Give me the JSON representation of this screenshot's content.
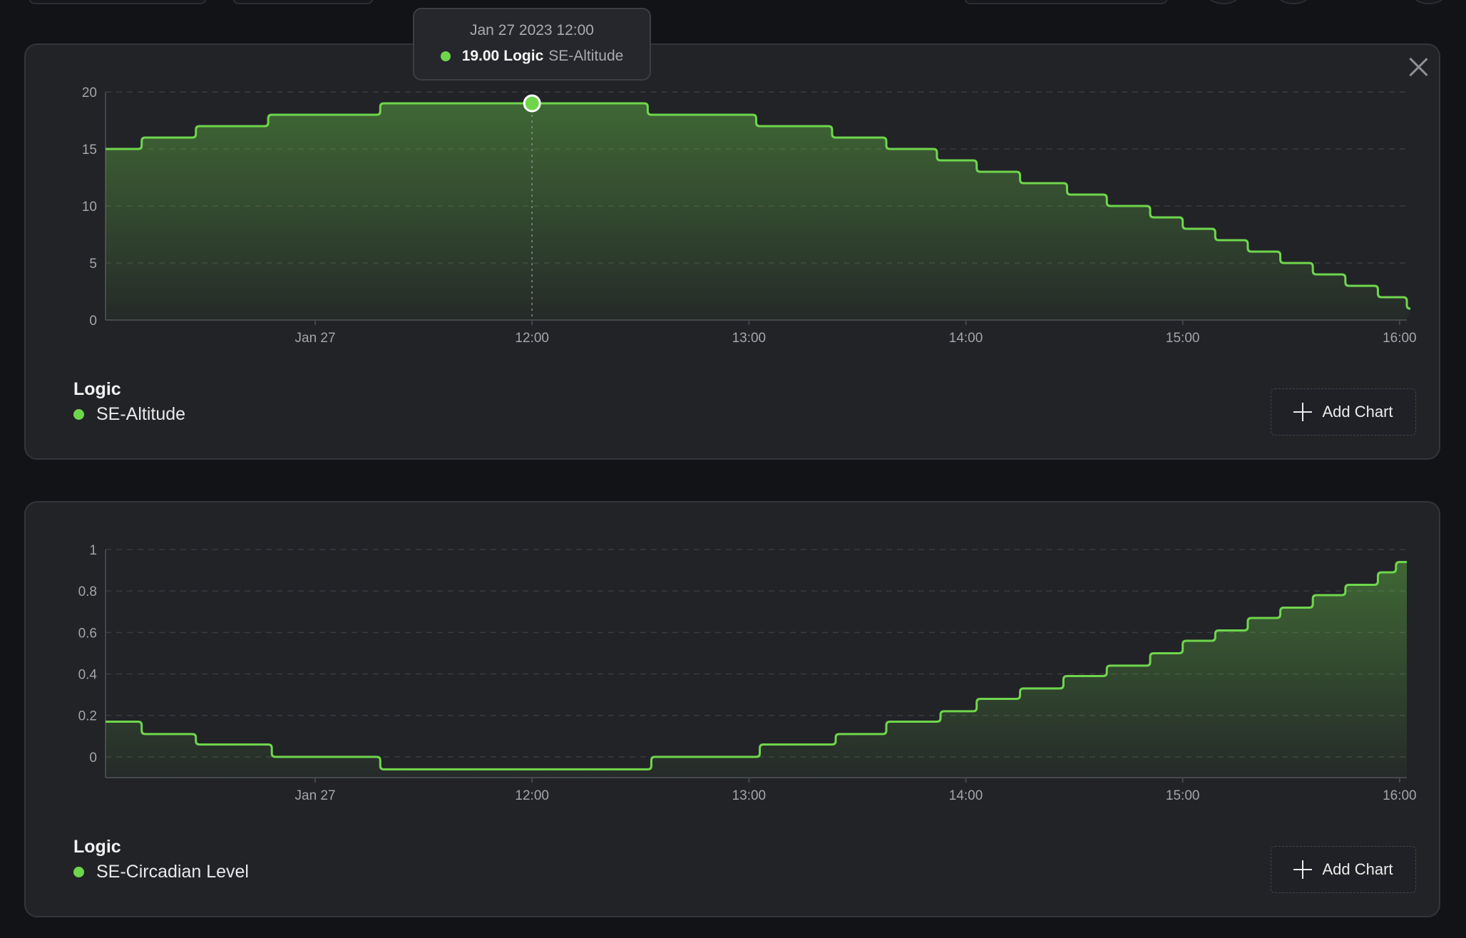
{
  "colors": {
    "accent": "#6fd64c",
    "background": "#121317",
    "card": "#222327",
    "grid": "#3a3b41",
    "tick_text": "#a4a5aa"
  },
  "icons": {
    "close": "close-icon",
    "add": "plus-icon"
  },
  "tooltip": {
    "date": "Jan 27 2023 12:00",
    "value": "19.00",
    "unit": "Logic",
    "series": "SE-Altitude"
  },
  "chart_data": [
    {
      "type": "area",
      "step": true,
      "x_ticks": [
        "Jan 27",
        "12:00",
        "13:00",
        "14:00",
        "15:00",
        "16:00"
      ],
      "x_tick_times": [
        "11:00",
        "12:00",
        "13:00",
        "14:00",
        "15:00",
        "16:00"
      ],
      "x_range": [
        "10:02",
        "16:02"
      ],
      "ylim": [
        0,
        20
      ],
      "y_ticks": [
        "0",
        "5",
        "10",
        "15",
        "20"
      ],
      "grid": true,
      "series": [
        {
          "name": "SE-Altitude",
          "color": "#6fd64c",
          "x": [
            "10:02",
            "10:12",
            "10:27",
            "10:47",
            "11:18",
            "11:52",
            "12:00",
            "12:32",
            "13:02",
            "13:23",
            "13:38",
            "13:52",
            "14:03",
            "14:15",
            "14:28",
            "14:39",
            "14:51",
            "15:00",
            "15:09",
            "15:18",
            "15:27",
            "15:36",
            "15:45",
            "15:54",
            "16:02"
          ],
          "y": [
            15,
            16,
            17,
            18,
            19,
            19,
            19,
            18,
            17,
            16,
            15,
            14,
            13,
            12,
            11,
            10,
            9,
            8,
            7,
            6,
            5,
            4,
            3,
            2,
            1
          ]
        }
      ],
      "legend": {
        "title": "Logic",
        "items": [
          "SE-Altitude"
        ]
      },
      "hover": {
        "x": "12:00",
        "y": 19
      }
    },
    {
      "type": "area",
      "step": true,
      "x_ticks": [
        "Jan 27",
        "12:00",
        "13:00",
        "14:00",
        "15:00",
        "16:00"
      ],
      "x_tick_times": [
        "11:00",
        "12:00",
        "13:00",
        "14:00",
        "15:00",
        "16:00"
      ],
      "x_range": [
        "10:02",
        "16:02"
      ],
      "ylim": [
        -0.1,
        1
      ],
      "y_ticks": [
        "0",
        "0.2",
        "0.4",
        "0.6",
        "0.8",
        "1"
      ],
      "grid": true,
      "series": [
        {
          "name": "SE-Circadian Level",
          "color": "#6fd64c",
          "x": [
            "10:02",
            "10:12",
            "10:27",
            "10:48",
            "11:18",
            "12:33",
            "13:03",
            "13:24",
            "13:38",
            "13:53",
            "14:03",
            "14:15",
            "14:27",
            "14:39",
            "14:51",
            "15:00",
            "15:09",
            "15:18",
            "15:27",
            "15:36",
            "15:45",
            "15:54",
            "15:59",
            "16:02"
          ],
          "y": [
            0.17,
            0.11,
            0.06,
            0.0,
            -0.06,
            0.0,
            0.06,
            0.11,
            0.17,
            0.22,
            0.28,
            0.33,
            0.39,
            0.44,
            0.5,
            0.56,
            0.61,
            0.67,
            0.72,
            0.78,
            0.83,
            0.89,
            0.94,
            0.94
          ]
        }
      ],
      "legend": {
        "title": "Logic",
        "items": [
          "SE-Circadian Level"
        ]
      }
    }
  ],
  "cards": [
    {
      "legend_title": "Logic",
      "legend_item": "SE-Altitude",
      "add_chart_label": "Add Chart"
    },
    {
      "legend_title": "Logic",
      "legend_item": "SE-Circadian Level",
      "add_chart_label": "Add Chart"
    }
  ]
}
